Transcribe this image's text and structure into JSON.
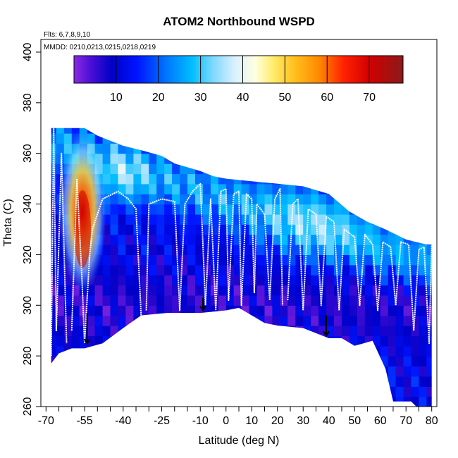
{
  "chart_data": {
    "type": "heatmap",
    "title": "ATOM2 Northbound WSPD",
    "annotations": [
      "Flts: 6,7,8,9,10",
      "MMDD: 0210,0213,0215,0218,0219"
    ],
    "xlabel": "Latitude (deg N)",
    "ylabel": "Theta (C)",
    "xlim": [
      -72,
      82
    ],
    "ylim": [
      260,
      405
    ],
    "x_ticks": [
      -70,
      -55,
      -40,
      -25,
      -10,
      0,
      10,
      20,
      30,
      40,
      50,
      60,
      70,
      80
    ],
    "x_tick_labels": [
      "-70",
      "-55",
      "-40",
      "-25",
      "-10",
      "0",
      "10",
      "20",
      "30",
      "40",
      "50",
      "60",
      "70",
      "80"
    ],
    "x_minor_ticks": [
      -65,
      -60,
      -50,
      -45,
      -35,
      -30,
      -20,
      -15,
      -5,
      5,
      15,
      25,
      35,
      45,
      55,
      65,
      75
    ],
    "y_ticks": [
      260,
      280,
      300,
      320,
      340,
      360,
      380,
      400
    ],
    "y_tick_labels": [
      "260",
      "280",
      "300",
      "320",
      "340",
      "360",
      "380",
      "400"
    ],
    "colorbar": {
      "range": [
        0,
        78
      ],
      "ticks": [
        10,
        20,
        30,
        40,
        50,
        60,
        70
      ],
      "tick_labels": [
        "10",
        "20",
        "30",
        "40",
        "50",
        "60",
        "70"
      ],
      "stops": [
        [
          0,
          "#8a2be2"
        ],
        [
          4,
          "#4b0fd6"
        ],
        [
          9,
          "#0000c8"
        ],
        [
          15,
          "#0014ff"
        ],
        [
          22,
          "#0078ff"
        ],
        [
          28,
          "#00beff"
        ],
        [
          33,
          "#7fd8ff"
        ],
        [
          38,
          "#d8f0ff"
        ],
        [
          43,
          "#ffffe0"
        ],
        [
          47,
          "#ffee70"
        ],
        [
          52,
          "#ffc21e"
        ],
        [
          58,
          "#ff8a00"
        ],
        [
          64,
          "#ff2000"
        ],
        [
          70,
          "#d10000"
        ],
        [
          78,
          "#8b1a1a"
        ]
      ]
    },
    "upper_boundary": [
      [
        -68,
        370
      ],
      [
        -63,
        370
      ],
      [
        -55,
        370
      ],
      [
        -50,
        367
      ],
      [
        -45,
        365
      ],
      [
        -40,
        363
      ],
      [
        -32,
        361
      ],
      [
        -25,
        359
      ],
      [
        -20,
        356
      ],
      [
        -10,
        353
      ],
      [
        -5,
        351
      ],
      [
        0,
        350
      ],
      [
        10,
        349
      ],
      [
        20,
        348
      ],
      [
        30,
        347
      ],
      [
        40,
        344
      ],
      [
        48,
        337
      ],
      [
        55,
        333
      ],
      [
        62,
        330
      ],
      [
        70,
        326
      ],
      [
        78,
        324
      ],
      [
        80,
        324
      ]
    ],
    "lower_boundary": [
      [
        -68,
        277
      ],
      [
        -65,
        281
      ],
      [
        -60,
        283
      ],
      [
        -55,
        283
      ],
      [
        -48,
        285
      ],
      [
        -40,
        291
      ],
      [
        -33,
        296
      ],
      [
        -23,
        297
      ],
      [
        -10,
        297
      ],
      [
        0,
        298
      ],
      [
        5,
        299
      ],
      [
        15,
        293
      ],
      [
        20,
        292
      ],
      [
        30,
        291
      ],
      [
        40,
        287
      ],
      [
        45,
        287
      ],
      [
        50,
        284
      ],
      [
        57,
        286
      ],
      [
        62,
        275
      ],
      [
        65,
        262
      ],
      [
        72,
        262
      ],
      [
        75,
        259
      ],
      [
        80,
        259
      ],
      [
        80,
        324
      ]
    ],
    "field_features": {
      "jet_core_lat": -55,
      "jet_core_theta": 335,
      "jet_core_wspd": 72,
      "background_wspd": 12
    },
    "flight_tracks": [
      {
        "segment": 1,
        "points": [
          [
            -68,
            280
          ],
          [
            -67,
            370
          ],
          [
            -66,
            290
          ],
          [
            -64,
            360
          ],
          [
            -62,
            285
          ]
        ]
      },
      {
        "segment": 2,
        "points": [
          [
            -60,
            290
          ],
          [
            -58,
            350
          ],
          [
            -56,
            310
          ],
          [
            -55,
            285
          ],
          [
            -53,
            320
          ],
          [
            -52,
            330
          ],
          [
            -48,
            342
          ],
          [
            -42,
            345
          ],
          [
            -38,
            342
          ],
          [
            -35,
            338
          ],
          [
            -33,
            296
          ]
        ]
      },
      {
        "segment": 3,
        "points": [
          [
            -31,
            298
          ],
          [
            -30,
            340
          ],
          [
            -25,
            342
          ],
          [
            -20,
            341
          ],
          [
            -18,
            298
          ],
          [
            -16,
            340
          ],
          [
            -13,
            345
          ],
          [
            -10,
            348
          ],
          [
            -8,
            300
          ],
          [
            -6,
            342
          ],
          [
            -4,
            298
          ],
          [
            -2,
            345
          ],
          [
            0,
            346
          ],
          [
            1,
            302
          ],
          [
            3,
            344
          ],
          [
            5,
            345
          ],
          [
            6,
            300
          ],
          [
            8,
            344
          ],
          [
            10,
            342
          ],
          [
            11,
            305
          ],
          [
            12,
            340
          ],
          [
            15,
            336
          ],
          [
            17,
            302
          ],
          [
            19,
            342
          ],
          [
            21,
            346
          ],
          [
            22,
            300
          ]
        ]
      },
      {
        "segment": 4,
        "points": [
          [
            24,
            302
          ],
          [
            26,
            340
          ],
          [
            28,
            342
          ],
          [
            30,
            298
          ],
          [
            32,
            338
          ],
          [
            35,
            336
          ],
          [
            37,
            300
          ],
          [
            39,
            335
          ],
          [
            42,
            333
          ],
          [
            44,
            298
          ],
          [
            46,
            330
          ],
          [
            50,
            327
          ],
          [
            52,
            300
          ],
          [
            54,
            328
          ],
          [
            57,
            324
          ],
          [
            59,
            298
          ],
          [
            61,
            325
          ],
          [
            64,
            323
          ],
          [
            66,
            300
          ],
          [
            68,
            325
          ],
          [
            71,
            324
          ],
          [
            73,
            290
          ],
          [
            75,
            322
          ],
          [
            77,
            323
          ],
          [
            79,
            285
          ],
          [
            80,
            324
          ]
        ]
      }
    ],
    "descent_arrows": [
      {
        "lat": -54,
        "theta_from": 297,
        "theta_to": 285
      },
      {
        "lat": -9,
        "theta_from": 303,
        "theta_to": 298
      },
      {
        "lat": 39,
        "theta_from": 296,
        "theta_to": 288
      }
    ]
  }
}
